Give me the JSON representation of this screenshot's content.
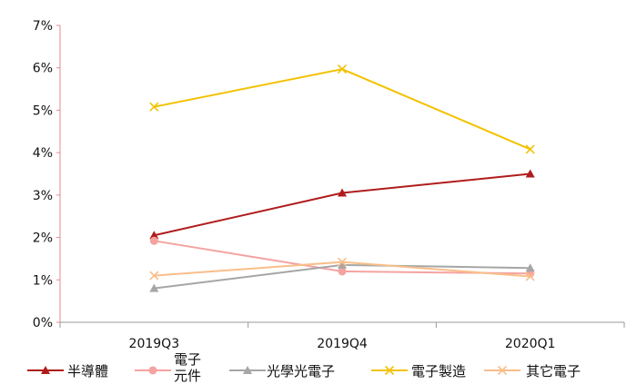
{
  "chart_data": {
    "type": "line",
    "categories": [
      "2019Q3",
      "2019Q4",
      "2020Q1"
    ],
    "ylim": [
      0,
      7
    ],
    "yticks": [
      "0%",
      "1%",
      "2%",
      "3%",
      "4%",
      "5%",
      "6%",
      "7%"
    ],
    "grid": false,
    "legend_position": "bottom",
    "series": [
      {
        "name": "半導體",
        "values": [
          2.05,
          3.05,
          3.5
        ],
        "color": "#b01c1c",
        "marker": "triangle"
      },
      {
        "name": "電子元件",
        "name_lines": [
          "電子",
          "元件"
        ],
        "values": [
          1.92,
          1.2,
          1.15
        ],
        "color": "#f4a3a0",
        "marker": "circle"
      },
      {
        "name": "光學光電子",
        "values": [
          0.8,
          1.35,
          1.28
        ],
        "color": "#a6a6a6",
        "marker": "triangle"
      },
      {
        "name": "電子製造",
        "values": [
          5.08,
          5.97,
          4.08
        ],
        "color": "#f2c200",
        "marker": "x"
      },
      {
        "name": "其它電子",
        "values": [
          1.1,
          1.42,
          1.08
        ],
        "color": "#f9be8a",
        "marker": "x"
      }
    ]
  }
}
